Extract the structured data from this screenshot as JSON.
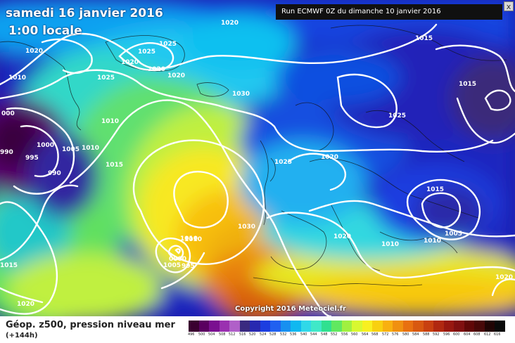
{
  "header": {
    "date_label": "samedi 16 janvier 2016",
    "time_label": "1:00 locale",
    "run_label": "Run ECMWF 0Z du dimanche 10 janvier 2016",
    "close_glyph": "x"
  },
  "copyright": "Copyright 2016 Meteociel.fr",
  "legend": {
    "title": "Géop. z500, pression niveau mer",
    "subtitle": "(+144h)",
    "scale_values": [
      "496",
      "500",
      "504",
      "508",
      "512",
      "516",
      "520",
      "524",
      "528",
      "532",
      "536",
      "540",
      "544",
      "548",
      "552",
      "556",
      "560",
      "564",
      "568",
      "572",
      "576",
      "580",
      "584",
      "588",
      "592",
      "596",
      "600",
      "604",
      "608",
      "612",
      "616"
    ],
    "scale_colors": [
      "#3a0030",
      "#5a0060",
      "#7a1090",
      "#9a30b0",
      "#b060c8",
      "#3a2a80",
      "#2828b0",
      "#1c3ee0",
      "#2060f0",
      "#1890f0",
      "#10b8f0",
      "#30d8e8",
      "#40e8c8",
      "#30e090",
      "#60e860",
      "#a0f040",
      "#d8f830",
      "#f8f020",
      "#f8d010",
      "#f8b010",
      "#f09010",
      "#e87010",
      "#d85810",
      "#c84010",
      "#b02810",
      "#981810",
      "#801010",
      "#600808",
      "#480808",
      "#200404",
      "#0a0a0a"
    ]
  },
  "isobars": [
    {
      "label": "1020",
      "kind": "pressure"
    },
    {
      "label": "1025",
      "kind": "pressure"
    },
    {
      "label": "1020",
      "kind": "pressure"
    },
    {
      "label": "1025",
      "kind": "pressure"
    },
    {
      "label": "1020",
      "kind": "pressure"
    },
    {
      "label": "1020",
      "kind": "pressure"
    },
    {
      "label": "1025",
      "kind": "pressure"
    },
    {
      "label": "1020",
      "kind": "pressure"
    },
    {
      "label": "1015",
      "kind": "pressure"
    },
    {
      "label": "1010",
      "kind": "pressure"
    },
    {
      "label": "1015",
      "kind": "pressure"
    },
    {
      "label": "1010",
      "kind": "pressure"
    },
    {
      "label": "1030",
      "kind": "pressure"
    },
    {
      "label": "1025",
      "kind": "pressure"
    },
    {
      "label": "1010",
      "kind": "pressure"
    },
    {
      "label": "000",
      "kind": "pressure"
    },
    {
      "label": "995",
      "kind": "pressure"
    },
    {
      "label": "1000",
      "kind": "pressure"
    },
    {
      "label": "1005",
      "kind": "pressure"
    },
    {
      "label": "1010",
      "kind": "pressure"
    },
    {
      "label": "990",
      "kind": "pressure"
    },
    {
      "label": "990",
      "kind": "pressure"
    },
    {
      "label": "1015",
      "kind": "pressure"
    },
    {
      "label": "1025",
      "kind": "pressure"
    },
    {
      "label": "1020",
      "kind": "pressure"
    },
    {
      "label": "1030",
      "kind": "pressure"
    },
    {
      "label": "1010",
      "kind": "pressure"
    },
    {
      "label": "0000",
      "kind": "pressure"
    },
    {
      "label": "1005",
      "kind": "pressure"
    },
    {
      "label": "995",
      "kind": "pressure"
    },
    {
      "label": "1020",
      "kind": "pressure"
    },
    {
      "label": "1015",
      "kind": "pressure"
    },
    {
      "label": "1010",
      "kind": "pressure"
    },
    {
      "label": "1010",
      "kind": "pressure"
    },
    {
      "label": "1005",
      "kind": "pressure"
    },
    {
      "label": "1015",
      "kind": "pressure"
    },
    {
      "label": "1020",
      "kind": "pressure"
    },
    {
      "label": "1020",
      "kind": "pressure"
    }
  ]
}
